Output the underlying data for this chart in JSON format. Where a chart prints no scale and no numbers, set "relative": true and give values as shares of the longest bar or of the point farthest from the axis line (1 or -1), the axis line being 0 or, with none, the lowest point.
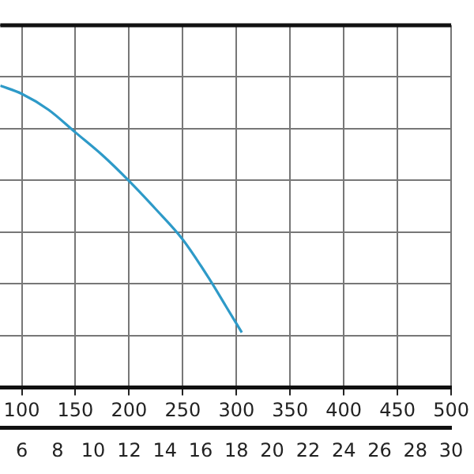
{
  "chart_data": {
    "type": "line",
    "relative": true,
    "x": [
      80,
      100,
      125,
      150,
      175,
      200,
      225,
      250,
      275,
      290,
      305
    ],
    "series": [
      {
        "color": "#2e9ac8",
        "values": [
          1.0,
          0.973,
          0.92,
          0.845,
          0.77,
          0.684,
          0.59,
          0.49,
          0.358,
          0.27,
          0.182
        ]
      }
    ],
    "xlim": [
      80,
      500
    ],
    "xticks": [
      100,
      150,
      200,
      250,
      300,
      350,
      400,
      450,
      500
    ],
    "x2lim": [
      4.8,
      30
    ],
    "x2ticks": [
      6,
      8,
      10,
      12,
      14,
      16,
      18,
      20,
      22,
      24,
      26,
      28,
      30
    ],
    "grid": true,
    "legend": false,
    "marker": "none",
    "line_style": "solid"
  }
}
